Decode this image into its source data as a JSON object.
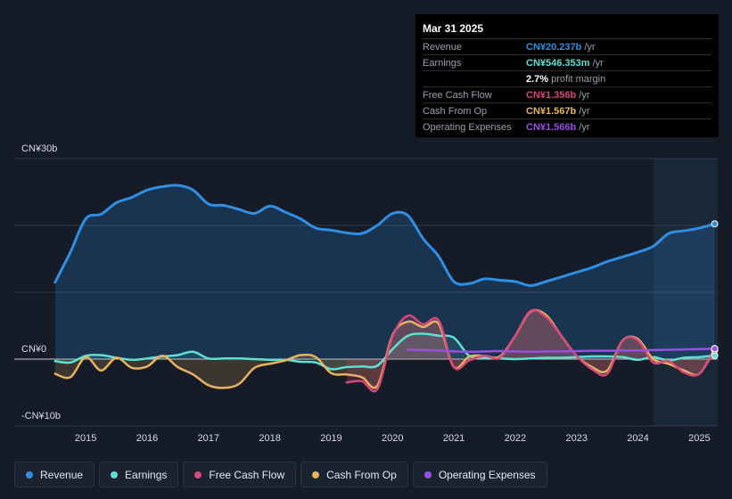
{
  "tooltip": {
    "date": "Mar 31 2025",
    "rows": {
      "revenue": {
        "label": "Revenue",
        "value": "CN¥20.237b",
        "suffix": "/yr"
      },
      "earnings": {
        "label": "Earnings",
        "value": "CN¥546.353m",
        "suffix": "/yr"
      },
      "margin": {
        "value": "2.7%",
        "suffix": "profit margin"
      },
      "fcf": {
        "label": "Free Cash Flow",
        "value": "CN¥1.356b",
        "suffix": "/yr"
      },
      "cfo": {
        "label": "Cash From Op",
        "value": "CN¥1.567b",
        "suffix": "/yr"
      },
      "opex": {
        "label": "Operating Expenses",
        "value": "CN¥1.566b",
        "suffix": "/yr"
      }
    }
  },
  "legend": {
    "revenue": "Revenue",
    "earnings": "Earnings",
    "fcf": "Free Cash Flow",
    "cfo": "Cash From Op",
    "opex": "Operating Expenses"
  },
  "colors": {
    "revenue": "#2f8fe4",
    "earnings": "#5fe0d2",
    "fcf": "#d6497a",
    "cfo": "#e8b25e",
    "opex": "#9a4fe3",
    "background": "#151b27",
    "forecast_band": "#1a2737"
  },
  "chart_data": {
    "type": "line",
    "title": "",
    "xlabel": "",
    "ylabel": "",
    "ylim": [
      -10,
      30
    ],
    "xlim": [
      2014.3,
      2025.3
    ],
    "y_tick_labels": [
      {
        "value": 30,
        "label": "CN¥30b"
      },
      {
        "value": 0,
        "label": "CN¥0"
      },
      {
        "value": -10,
        "label": "-CN¥10b"
      }
    ],
    "x_ticks": [
      2015,
      2016,
      2017,
      2018,
      2019,
      2020,
      2021,
      2022,
      2023,
      2024,
      2025
    ],
    "x_tick_labels": [
      "2015",
      "2016",
      "2017",
      "2018",
      "2019",
      "2020",
      "2021",
      "2022",
      "2023",
      "2024",
      "2025"
    ],
    "highlight_from": 2024.25,
    "series": [
      {
        "name": "Revenue",
        "key": "revenue",
        "x": [
          2014.5,
          2014.75,
          2015.0,
          2015.25,
          2015.5,
          2015.75,
          2016.0,
          2016.25,
          2016.5,
          2016.75,
          2017.0,
          2017.25,
          2017.5,
          2017.75,
          2018.0,
          2018.25,
          2018.5,
          2018.75,
          2019.0,
          2019.25,
          2019.5,
          2019.75,
          2020.0,
          2020.25,
          2020.5,
          2020.75,
          2021.0,
          2021.25,
          2021.5,
          2021.75,
          2022.0,
          2022.25,
          2022.5,
          2022.75,
          2023.0,
          2023.25,
          2023.5,
          2023.75,
          2024.0,
          2024.25,
          2024.5,
          2024.75,
          2025.0,
          2025.25
        ],
        "values": [
          11.5,
          16,
          21,
          21.7,
          23.4,
          24.2,
          25.3,
          25.8,
          26,
          25.3,
          23.2,
          23,
          22.4,
          21.8,
          22.9,
          22,
          21,
          19.6,
          19.3,
          18.9,
          18.8,
          20,
          21.8,
          21.5,
          18,
          15.4,
          11.6,
          11.3,
          12,
          11.8,
          11.6,
          11,
          11.6,
          12.3,
          13,
          13.7,
          14.6,
          15.3,
          16,
          16.9,
          18.8,
          19.2,
          19.6,
          20.237
        ]
      },
      {
        "name": "Earnings",
        "key": "earnings",
        "x": [
          2014.5,
          2014.75,
          2015.0,
          2015.25,
          2015.5,
          2015.75,
          2016.0,
          2016.25,
          2016.5,
          2016.75,
          2017.0,
          2017.25,
          2017.5,
          2017.75,
          2018.0,
          2018.25,
          2018.5,
          2018.75,
          2019.0,
          2019.25,
          2019.5,
          2019.75,
          2020.0,
          2020.25,
          2020.5,
          2020.75,
          2021.0,
          2021.25,
          2021.5,
          2021.75,
          2022.0,
          2022.25,
          2022.5,
          2022.75,
          2023.0,
          2023.25,
          2023.5,
          2023.75,
          2024.0,
          2024.25,
          2024.5,
          2024.75,
          2025.0,
          2025.25
        ],
        "values": [
          -0.3,
          -0.5,
          0.5,
          0.6,
          0.2,
          -0.1,
          0.1,
          0.4,
          0.6,
          1.1,
          0.1,
          0.1,
          0.1,
          0,
          -0.1,
          -0.1,
          -0.4,
          -0.5,
          -1.5,
          -1.2,
          -1.1,
          -1,
          1.5,
          3.5,
          3.8,
          3.5,
          3.2,
          0.5,
          0.2,
          0.1,
          0,
          0.1,
          0.2,
          0.2,
          0.3,
          0.4,
          0.4,
          0.3,
          -0.1,
          0.3,
          -0.2,
          0.2,
          0.3,
          0.546
        ]
      },
      {
        "name": "Free Cash Flow",
        "key": "fcf",
        "x": [
          2019.25,
          2019.5,
          2019.75,
          2020.0,
          2020.25,
          2020.5,
          2020.75,
          2021.0,
          2021.25,
          2021.5,
          2021.75,
          2022.0,
          2022.25,
          2022.5,
          2022.75,
          2023.0,
          2023.25,
          2023.5,
          2023.75,
          2024.0,
          2024.25,
          2024.5,
          2024.75,
          2025.0,
          2025.25
        ],
        "values": [
          -3.5,
          -3.3,
          -4.5,
          3.4,
          6.5,
          5.2,
          5.8,
          -1.2,
          -0.2,
          0.5,
          0.2,
          3.5,
          7.2,
          6.3,
          3.5,
          0.5,
          -1.5,
          -2.2,
          2.8,
          2.8,
          -0.5,
          -0.3,
          -2,
          -2.2,
          1.356
        ]
      },
      {
        "name": "Cash From Op",
        "key": "cfo",
        "x": [
          2014.5,
          2014.75,
          2015.0,
          2015.25,
          2015.5,
          2015.75,
          2016.0,
          2016.25,
          2016.5,
          2016.75,
          2017.0,
          2017.25,
          2017.5,
          2017.75,
          2018.0,
          2018.25,
          2018.5,
          2018.75,
          2019.0,
          2019.25,
          2019.5,
          2019.75,
          2020.0,
          2020.25,
          2020.5,
          2020.75,
          2021.0,
          2021.25,
          2021.5,
          2021.75,
          2022.0,
          2022.25,
          2022.5,
          2022.75,
          2023.0,
          2023.25,
          2023.5,
          2023.75,
          2024.0,
          2024.25,
          2024.5,
          2024.75,
          2025.0,
          2025.25
        ],
        "values": [
          -2.2,
          -2.7,
          0.3,
          -1.7,
          0.2,
          -1.3,
          -1.1,
          0.5,
          -1.2,
          -2.3,
          -3.9,
          -4.3,
          -3.7,
          -1.3,
          -0.7,
          -0.2,
          0.6,
          0.3,
          -2.1,
          -2.3,
          -2.7,
          -4,
          3.6,
          5.6,
          4.8,
          5.3,
          -1.2,
          0.4,
          0.5,
          0.4,
          3.5,
          7.1,
          6.6,
          3.5,
          0.5,
          -1.2,
          -1.7,
          2.8,
          3,
          0,
          -0.7,
          -1.7,
          -2.2,
          1.567
        ]
      },
      {
        "name": "Operating Expenses",
        "key": "opex",
        "x": [
          2020.25,
          2020.5,
          2020.75,
          2021.0,
          2021.25,
          2021.5,
          2021.75,
          2022.0,
          2022.25,
          2022.5,
          2022.75,
          2023.0,
          2023.25,
          2023.5,
          2023.75,
          2024.0,
          2024.25,
          2024.5,
          2024.75,
          2025.0,
          2025.25
        ],
        "values": [
          1.4,
          1.35,
          1.3,
          1.15,
          1.1,
          1.15,
          1.2,
          1.15,
          1.1,
          1.15,
          1.15,
          1.2,
          1.25,
          1.25,
          1.3,
          1.3,
          1.35,
          1.4,
          1.45,
          1.5,
          1.566
        ]
      }
    ]
  }
}
